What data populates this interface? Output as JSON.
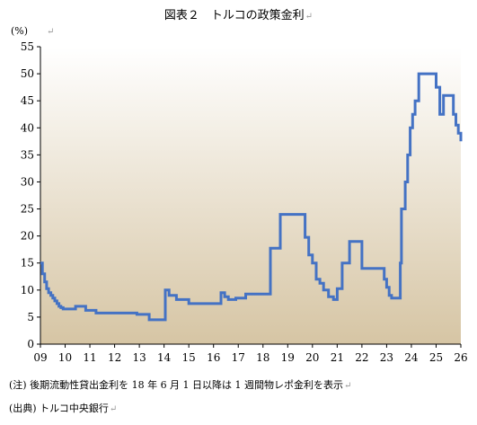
{
  "chart_data": {
    "type": "line",
    "title": "図表２　トルコの政策金利",
    "unit_label": "(%)",
    "ylim": [
      0,
      55
    ],
    "y_ticks": [
      0,
      5,
      10,
      15,
      20,
      25,
      30,
      35,
      40,
      45,
      50,
      55
    ],
    "xlim": [
      9,
      26
    ],
    "x_ticks": [
      9,
      10,
      11,
      12,
      13,
      14,
      15,
      16,
      17,
      18,
      19,
      20,
      21,
      22,
      23,
      24,
      25,
      26
    ],
    "x_tick_labels": [
      "09",
      "10",
      "11",
      "12",
      "13",
      "14",
      "15",
      "16",
      "17",
      "18",
      "19",
      "20",
      "21",
      "22",
      "23",
      "24",
      "25",
      "26"
    ],
    "grid": false,
    "line_color": "#4472c4",
    "background_gradient": [
      "#ffffff",
      "#d6c5a4"
    ],
    "series": [
      {
        "x": [
          9.0,
          9.08,
          9.17,
          9.25,
          9.33,
          9.42,
          9.5,
          9.58,
          9.67,
          9.75,
          9.83,
          9.92,
          10.0,
          10.42,
          10.83,
          11.25,
          11.33,
          11.75,
          12.4,
          12.9,
          13.4,
          14.05,
          14.2,
          14.5,
          14.7,
          15.0,
          16.3,
          16.45,
          16.6,
          16.75,
          16.9,
          17.3,
          18.0,
          18.3,
          18.45,
          18.7,
          19.5,
          19.7,
          19.85,
          20.0,
          20.15,
          20.3,
          20.45,
          20.65,
          20.85,
          21.0,
          21.2,
          21.5,
          21.8,
          22.0,
          22.8,
          22.9,
          23.0,
          23.1,
          23.2,
          23.5,
          23.55,
          23.6,
          23.75,
          23.85,
          23.95,
          24.05,
          24.15,
          24.3,
          25.0,
          25.15,
          25.3,
          25.7,
          25.8,
          25.9,
          26.0
        ],
        "y": [
          15,
          13,
          11.5,
          10.25,
          9.5,
          9.0,
          8.5,
          8.0,
          7.5,
          7.0,
          6.75,
          6.5,
          6.5,
          7.0,
          6.25,
          5.75,
          5.75,
          5.75,
          5.75,
          5.5,
          4.5,
          10.0,
          9.0,
          8.25,
          8.25,
          7.5,
          9.5,
          8.75,
          8.25,
          8.25,
          8.5,
          9.25,
          9.25,
          17.75,
          17.75,
          24.0,
          24.0,
          19.75,
          16.5,
          15.0,
          12.0,
          11.25,
          10.0,
          8.75,
          8.25,
          10.25,
          15.0,
          19.0,
          19.0,
          14.0,
          14.0,
          12.0,
          10.5,
          9.0,
          8.5,
          8.5,
          15.0,
          25.0,
          30.0,
          35.0,
          40.0,
          42.5,
          45.0,
          50.0,
          47.5,
          42.5,
          46.0,
          42.5,
          40.5,
          39.0,
          37.5
        ]
      }
    ]
  },
  "notes": {
    "footnote": "(注) 後期流動性貸出金利を 18 年 6 月 1 日以降は 1 週間物レポ金利を表示",
    "source": "(出典) トルコ中央銀行"
  }
}
